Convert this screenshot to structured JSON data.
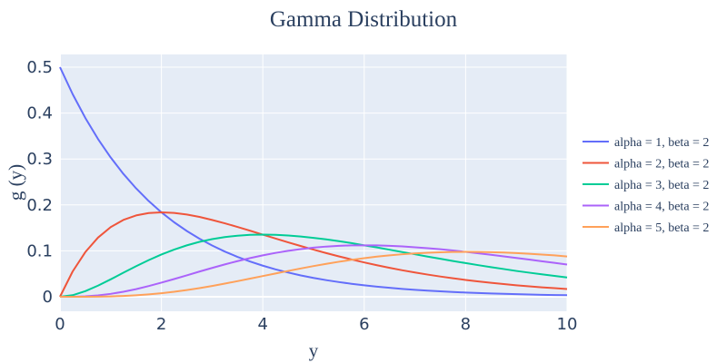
{
  "chart_data": {
    "type": "line",
    "title": "Gamma Distribution",
    "xlabel": "y",
    "ylabel": "g (y)",
    "xlim": [
      0,
      10
    ],
    "ylim": [
      -0.03,
      0.53
    ],
    "xticks": [
      0,
      2,
      4,
      6,
      8,
      10
    ],
    "yticks": [
      0,
      0.1,
      0.2,
      0.3,
      0.4,
      0.5
    ],
    "ytick_labels": [
      "0",
      "0.1",
      "0.2",
      "0.3",
      "0.4",
      "0.5"
    ],
    "grid": true,
    "legend_position": "right",
    "x": [
      0,
      0.25,
      0.5,
      0.75,
      1,
      1.25,
      1.5,
      1.75,
      2,
      2.25,
      2.5,
      2.75,
      3,
      3.25,
      3.5,
      3.75,
      4,
      4.25,
      4.5,
      4.75,
      5,
      5.25,
      5.5,
      5.75,
      6,
      6.25,
      6.5,
      6.75,
      7,
      7.25,
      7.5,
      7.75,
      8,
      8.25,
      8.5,
      8.75,
      9,
      9.25,
      9.5,
      9.75,
      10
    ],
    "series": [
      {
        "name": "alpha = 1, beta = 2",
        "color": "#636efa",
        "values": [
          0.5,
          0.4412,
          0.3894,
          0.3436,
          0.3033,
          0.2676,
          0.2362,
          0.2084,
          0.1839,
          0.1623,
          0.1433,
          0.1264,
          0.1116,
          0.0985,
          0.0869,
          0.0767,
          0.0677,
          0.0597,
          0.0527,
          0.0465,
          0.041,
          0.0362,
          0.032,
          0.0282,
          0.0249,
          0.022,
          0.0194,
          0.0171,
          0.0151,
          0.0133,
          0.0118,
          0.0104,
          0.0092,
          0.0081,
          0.0071,
          0.0063,
          0.0056,
          0.0049,
          0.0043,
          0.0038,
          0.0034
        ]
      },
      {
        "name": "alpha = 2, beta = 2",
        "color": "#ef553b",
        "values": [
          0,
          0.0551,
          0.0973,
          0.1288,
          0.1516,
          0.1673,
          0.1771,
          0.1824,
          0.1839,
          0.1826,
          0.1791,
          0.1739,
          0.1673,
          0.16,
          0.152,
          0.1438,
          0.1353,
          0.1269,
          0.1185,
          0.1104,
          0.1026,
          0.0951,
          0.088,
          0.0812,
          0.0747,
          0.0687,
          0.063,
          0.0577,
          0.0528,
          0.0483,
          0.0441,
          0.0402,
          0.0366,
          0.0334,
          0.0304,
          0.0276,
          0.025,
          0.0227,
          0.0206,
          0.0187,
          0.0168
        ]
      },
      {
        "name": "alpha = 3, beta = 2",
        "color": "#00cc96",
        "values": [
          0,
          0.0034,
          0.0122,
          0.0242,
          0.0379,
          0.0523,
          0.0664,
          0.0798,
          0.092,
          0.1027,
          0.1119,
          0.1196,
          0.1255,
          0.13,
          0.133,
          0.1348,
          0.1353,
          0.1348,
          0.1333,
          0.1311,
          0.1283,
          0.1249,
          0.121,
          0.1168,
          0.112,
          0.1074,
          0.1024,
          0.0974,
          0.0925,
          0.0875,
          0.0827,
          0.0779,
          0.0733,
          0.0688,
          0.0645,
          0.0604,
          0.0562,
          0.0525,
          0.0489,
          0.0455,
          0.0421
        ]
      },
      {
        "name": "alpha = 4, beta = 2",
        "color": "#ab63fa",
        "values": [
          0,
          0.0001,
          0.001,
          0.003,
          0.0063,
          0.0109,
          0.0166,
          0.0233,
          0.0307,
          0.0385,
          0.0466,
          0.0548,
          0.0627,
          0.0704,
          0.0776,
          0.0842,
          0.0902,
          0.0955,
          0.1,
          0.1038,
          0.1069,
          0.1093,
          0.1109,
          0.1119,
          0.112,
          0.1118,
          0.1109,
          0.1096,
          0.1078,
          0.1057,
          0.1034,
          0.1007,
          0.0977,
          0.0946,
          0.0914,
          0.088,
          0.0844,
          0.081,
          0.0774,
          0.0739,
          0.0702
        ]
      },
      {
        "name": "alpha = 5, beta = 2",
        "color": "#ffa15a",
        "values": [
          0,
          0,
          0.0001,
          0.0003,
          0.0008,
          0.0017,
          0.0031,
          0.0051,
          0.0077,
          0.0108,
          0.0146,
          0.0188,
          0.0235,
          0.0286,
          0.034,
          0.0395,
          0.0451,
          0.0507,
          0.0562,
          0.0616,
          0.0668,
          0.0717,
          0.0762,
          0.0804,
          0.0841,
          0.0874,
          0.0901,
          0.0925,
          0.0944,
          0.0958,
          0.0969,
          0.0975,
          0.0977,
          0.0976,
          0.0971,
          0.0963,
          0.0951,
          0.0937,
          0.092,
          0.0901,
          0.0877
        ]
      }
    ]
  }
}
